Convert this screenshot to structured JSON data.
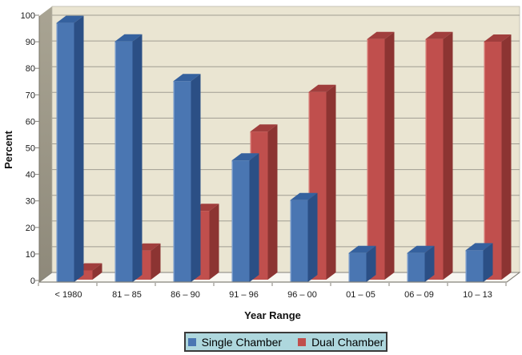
{
  "chart_data": {
    "type": "bar",
    "projection": "3d",
    "title": "",
    "xlabel": "Year Range",
    "ylabel": "Percent",
    "ylim": [
      0,
      100
    ],
    "ytick_step": 10,
    "yticks": [
      0,
      10,
      20,
      30,
      40,
      50,
      60,
      70,
      80,
      90,
      100
    ],
    "grid": true,
    "legend_position": "bottom",
    "categories": [
      "< 1980",
      "81 – 85",
      "86 – 90",
      "91 – 96",
      "96 – 00",
      "01 – 05",
      "06 – 09",
      "10 – 13"
    ],
    "series": [
      {
        "name": "Single Chamber",
        "values": [
          98,
          91,
          76,
          46,
          31,
          11,
          11,
          12
        ],
        "colors": {
          "front": "#4a76b2",
          "top": "#35619e",
          "side": "#2b4f85",
          "highlight": "#7397c9"
        }
      },
      {
        "name": "Dual Chamber",
        "values": [
          3.5,
          11,
          26,
          56,
          71,
          91,
          91,
          90
        ],
        "colors": {
          "front": "#c04f4d",
          "top": "#a03e3d",
          "side": "#8c3432",
          "highlight": "#d4736f"
        }
      }
    ],
    "colors": {
      "back_wall": "#eae5d2",
      "side_wall_top": "#a9a493",
      "side_wall_bottom": "#8e897a",
      "floor": "#f8f7f1",
      "gridline": "#a09d92",
      "axis": "#85827a",
      "tick_label": "#1a1a1a",
      "legend_fill": "#aed7dd",
      "legend_border": "#3a3a3a"
    }
  }
}
